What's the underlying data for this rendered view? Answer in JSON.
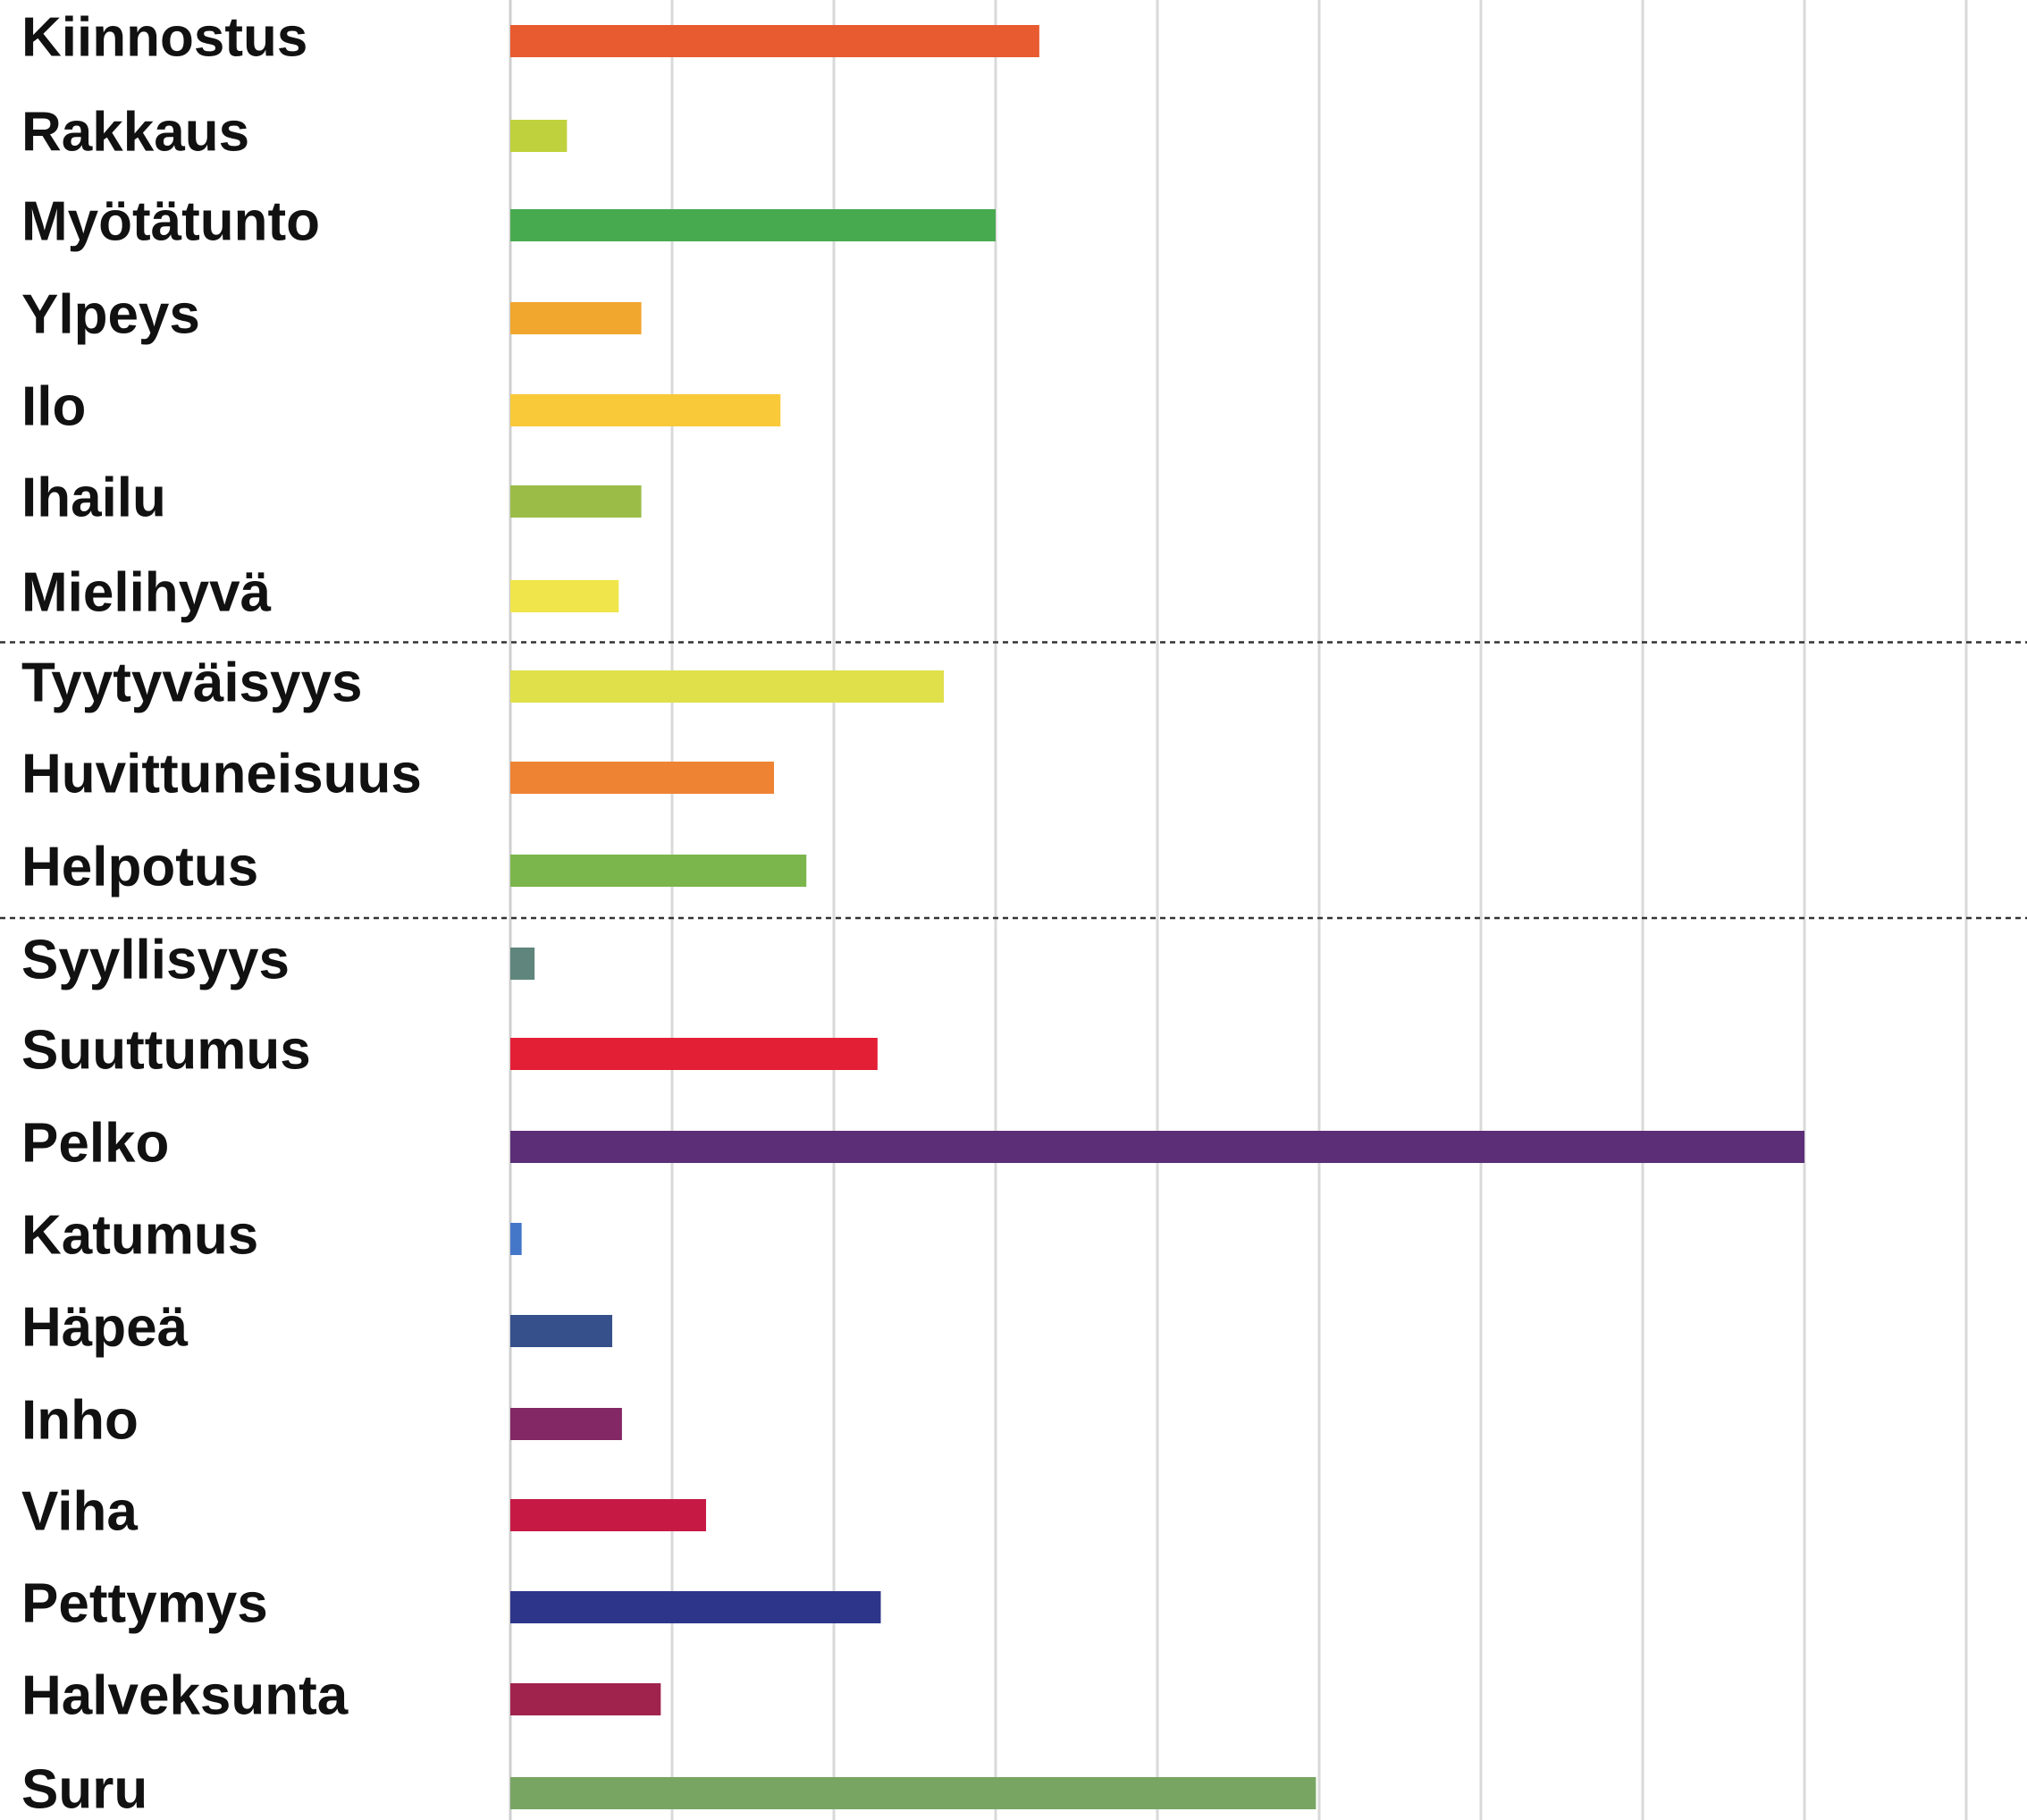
{
  "chart_data": {
    "type": "bar",
    "orientation": "horizontal",
    "title": "",
    "xlabel": "",
    "ylabel": "",
    "grid": true,
    "xlim": [
      0,
      9
    ],
    "categories": [
      "Kiinnostus",
      "Rakkaus",
      "Myötätunto",
      "Ylpeys",
      "Ilo",
      "Ihailu",
      "Mielihyvä",
      "Tyytyväisyys",
      "Huvittuneisuus",
      "Helpotus",
      "Syyllisyys",
      "Suuttumus",
      "Pelko",
      "Katumus",
      "Häpeä",
      "Inho",
      "Viha",
      "Pettymys",
      "Halveksunta",
      "Suru"
    ],
    "values": [
      3.27,
      0.35,
      3.0,
      0.81,
      1.67,
      0.81,
      0.67,
      2.68,
      1.63,
      1.83,
      0.15,
      2.27,
      8.0,
      0.07,
      0.63,
      0.69,
      1.21,
      2.29,
      0.93,
      4.98
    ],
    "colors": [
      "#e85a2f",
      "#bfd13c",
      "#48aa4f",
      "#f1a62e",
      "#f9c93a",
      "#9bbd48",
      "#f0e54a",
      "#dfe04a",
      "#ee8334",
      "#7ab64b",
      "#5f857c",
      "#e31f36",
      "#5c2e78",
      "#4577c8",
      "#35508a",
      "#832765",
      "#c61a45",
      "#2d358a",
      "#a0234d",
      "#79a563"
    ],
    "groups": [
      {
        "from": 0,
        "to": 6
      },
      {
        "from": 7,
        "to": 9
      },
      {
        "from": 10,
        "to": 19
      }
    ]
  }
}
